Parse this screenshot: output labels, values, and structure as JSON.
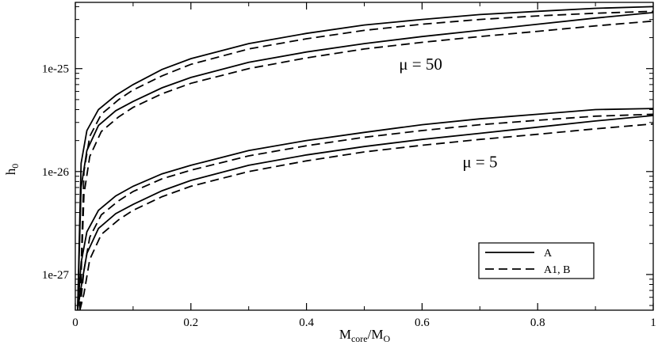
{
  "chart_data": {
    "type": "line",
    "xlabel_main": "M",
    "xlabel_sub1": "core",
    "xlabel_mid": "/M",
    "xlabel_sub2": "O",
    "ylabel_main": "h",
    "ylabel_sub": "0",
    "xlim": [
      0,
      1
    ],
    "ylim": [
      4.5e-28,
      4.4e-25
    ],
    "yscale": "log",
    "x_ticks": [
      0,
      0.2,
      0.4,
      0.6,
      0.8,
      1
    ],
    "x_tick_labels": [
      "0",
      "0.2",
      "0.4",
      "0.6",
      "0.8",
      "1"
    ],
    "y_ticks": [
      1e-27,
      1e-26,
      1e-25
    ],
    "y_tick_labels": [
      "1e-27",
      "1e-26",
      "1e-25"
    ],
    "annotations": [
      {
        "text": "μ = 50",
        "x": 0.56,
        "y": 9.8e-26
      },
      {
        "text": "μ = 5",
        "x": 0.67,
        "y": 1.1e-26
      }
    ],
    "legend": {
      "position": "lower-right",
      "entries": [
        {
          "label": "A",
          "style": "solid"
        },
        {
          "label": "A1, B",
          "style": "dashed"
        }
      ]
    },
    "series": [
      {
        "group": "μ = 50",
        "style": "solid",
        "x": [
          0.004,
          0.01,
          0.02,
          0.04,
          0.07,
          0.1,
          0.15,
          0.2,
          0.3,
          0.4,
          0.5,
          0.6,
          0.7,
          0.8,
          0.9,
          1.0
        ],
        "y": [
          4.5e-28,
          1.2e-26,
          2.5e-26,
          4e-26,
          5.5e-26,
          7e-26,
          9.8e-26,
          1.25e-25,
          1.75e-25,
          2.2e-25,
          2.65e-25,
          3e-25,
          3.35e-25,
          3.6e-25,
          3.85e-25,
          4e-25
        ]
      },
      {
        "group": "μ = 50",
        "style": "dashed",
        "x": [
          0.008,
          0.015,
          0.025,
          0.045,
          0.075,
          0.1,
          0.15,
          0.2,
          0.3,
          0.4,
          0.5,
          0.6,
          0.7,
          0.8,
          0.9,
          1.0
        ],
        "y": [
          4.5e-28,
          1e-26,
          2.2e-26,
          3.6e-26,
          5e-26,
          6.2e-26,
          8.5e-26,
          1.1e-25,
          1.55e-25,
          1.95e-25,
          2.35e-25,
          2.7e-25,
          3e-25,
          3.25e-25,
          3.45e-25,
          3.6e-25
        ]
      },
      {
        "group": "μ = 50",
        "style": "solid",
        "x": [
          0.004,
          0.01,
          0.02,
          0.04,
          0.07,
          0.1,
          0.15,
          0.2,
          0.3,
          0.4,
          0.5,
          0.6,
          0.7,
          0.8,
          0.9,
          1.0
        ],
        "y": [
          4.5e-28,
          7e-27,
          1.6e-26,
          2.8e-26,
          3.9e-26,
          4.8e-26,
          6.5e-26,
          8.2e-26,
          1.15e-25,
          1.45e-25,
          1.75e-25,
          2.05e-25,
          2.35e-25,
          2.7e-25,
          3.1e-25,
          3.5e-25
        ]
      },
      {
        "group": "μ = 50",
        "style": "dashed",
        "x": [
          0.008,
          0.015,
          0.025,
          0.045,
          0.075,
          0.1,
          0.15,
          0.2,
          0.3,
          0.4,
          0.5,
          0.6,
          0.7,
          0.8,
          0.9,
          1.0
        ],
        "y": [
          4.5e-28,
          6e-27,
          1.4e-26,
          2.45e-26,
          3.4e-26,
          4.2e-26,
          5.7e-26,
          7.2e-26,
          1e-25,
          1.27e-25,
          1.55e-25,
          1.8e-25,
          2.05e-25,
          2.3e-25,
          2.6e-25,
          2.9e-25
        ]
      },
      {
        "group": "μ = 5",
        "style": "solid",
        "x": [
          0.004,
          0.01,
          0.02,
          0.04,
          0.07,
          0.1,
          0.15,
          0.2,
          0.3,
          0.4,
          0.5,
          0.6,
          0.7,
          0.8,
          0.9,
          1.0
        ],
        "y": [
          4.5e-28,
          1.3e-27,
          2.6e-27,
          4.2e-27,
          5.8e-27,
          7.2e-27,
          9.5e-27,
          1.15e-26,
          1.6e-26,
          2e-26,
          2.4e-26,
          2.85e-26,
          3.25e-26,
          3.6e-26,
          4e-26,
          4.1e-26
        ]
      },
      {
        "group": "μ = 5",
        "style": "dashed",
        "x": [
          0.008,
          0.015,
          0.025,
          0.045,
          0.075,
          0.1,
          0.15,
          0.2,
          0.3,
          0.4,
          0.5,
          0.6,
          0.7,
          0.8,
          0.9,
          1.0
        ],
        "y": [
          4.5e-28,
          1.1e-27,
          2.3e-27,
          3.8e-27,
          5.2e-27,
          6.4e-27,
          8.5e-27,
          1.03e-26,
          1.42e-26,
          1.78e-26,
          2.15e-26,
          2.5e-26,
          2.85e-26,
          3.15e-26,
          3.45e-26,
          3.6e-26
        ]
      },
      {
        "group": "μ = 5",
        "style": "solid",
        "x": [
          0.004,
          0.01,
          0.02,
          0.04,
          0.07,
          0.1,
          0.15,
          0.2,
          0.3,
          0.4,
          0.5,
          0.6,
          0.7,
          0.8,
          0.9,
          1.0
        ],
        "y": [
          4.5e-28,
          7.5e-28,
          1.6e-27,
          2.8e-27,
          3.9e-27,
          4.8e-27,
          6.5e-27,
          8.2e-27,
          1.15e-26,
          1.45e-26,
          1.75e-26,
          2.05e-26,
          2.35e-26,
          2.7e-26,
          3.1e-26,
          3.5e-26
        ]
      },
      {
        "group": "μ = 5",
        "style": "dashed",
        "x": [
          0.008,
          0.015,
          0.025,
          0.045,
          0.075,
          0.1,
          0.15,
          0.2,
          0.3,
          0.4,
          0.5,
          0.6,
          0.7,
          0.8,
          0.9,
          1.0
        ],
        "y": [
          4.5e-28,
          6.5e-28,
          1.4e-27,
          2.45e-27,
          3.4e-27,
          4.2e-27,
          5.7e-27,
          7.2e-27,
          1e-26,
          1.27e-26,
          1.55e-26,
          1.8e-26,
          2.05e-26,
          2.3e-26,
          2.6e-26,
          2.9e-26
        ]
      }
    ]
  }
}
